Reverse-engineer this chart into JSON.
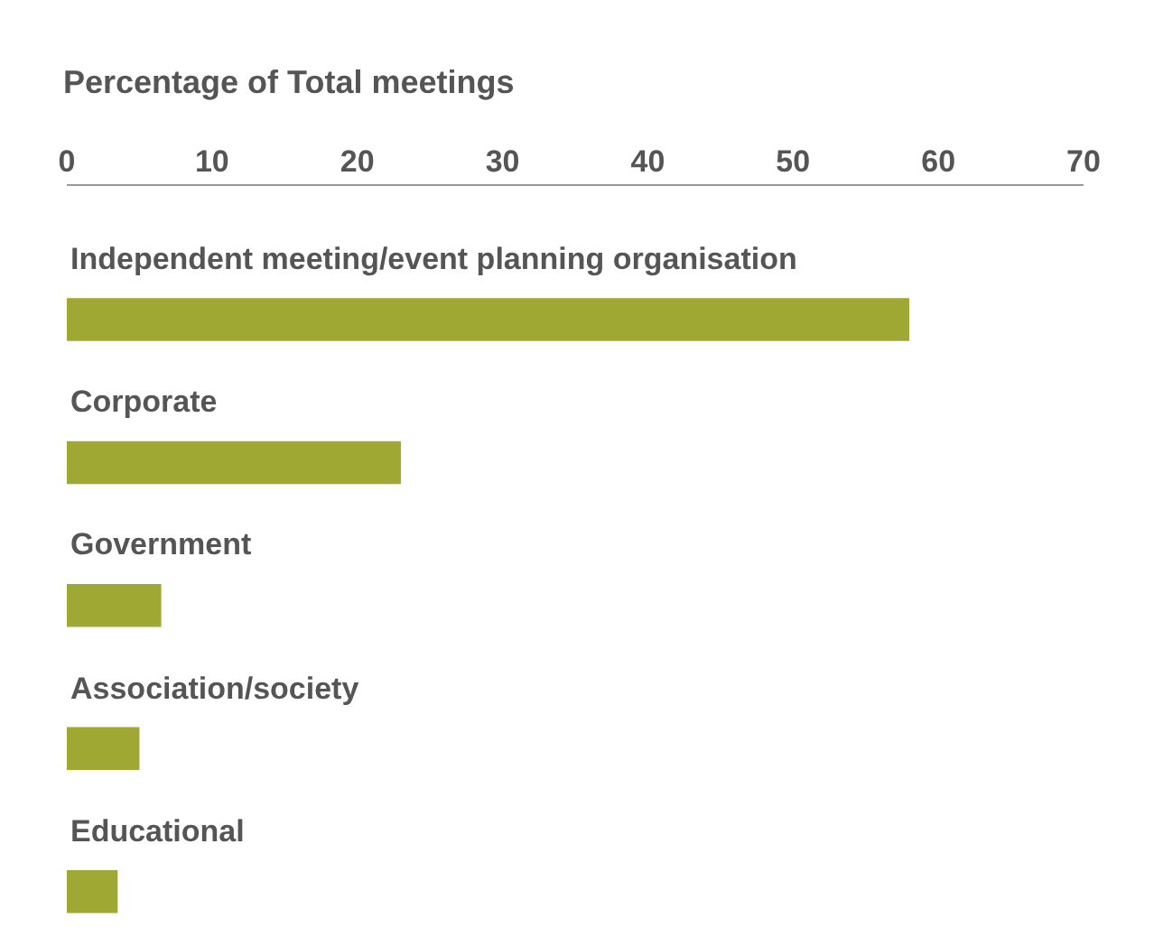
{
  "chart_data": {
    "type": "bar",
    "orientation": "horizontal",
    "title": "Percentage of Total meetings",
    "categories": [
      "Independent meeting/event planning organisation",
      "Corporate",
      "Government",
      "Association/society",
      "Educational"
    ],
    "values": [
      58,
      23,
      6.5,
      5,
      3.5
    ],
    "color": "#9fa832",
    "xlim": [
      0,
      70
    ],
    "xticks": [
      0,
      10,
      20,
      30,
      40,
      50,
      60,
      70
    ],
    "grid": false,
    "legend": false
  }
}
